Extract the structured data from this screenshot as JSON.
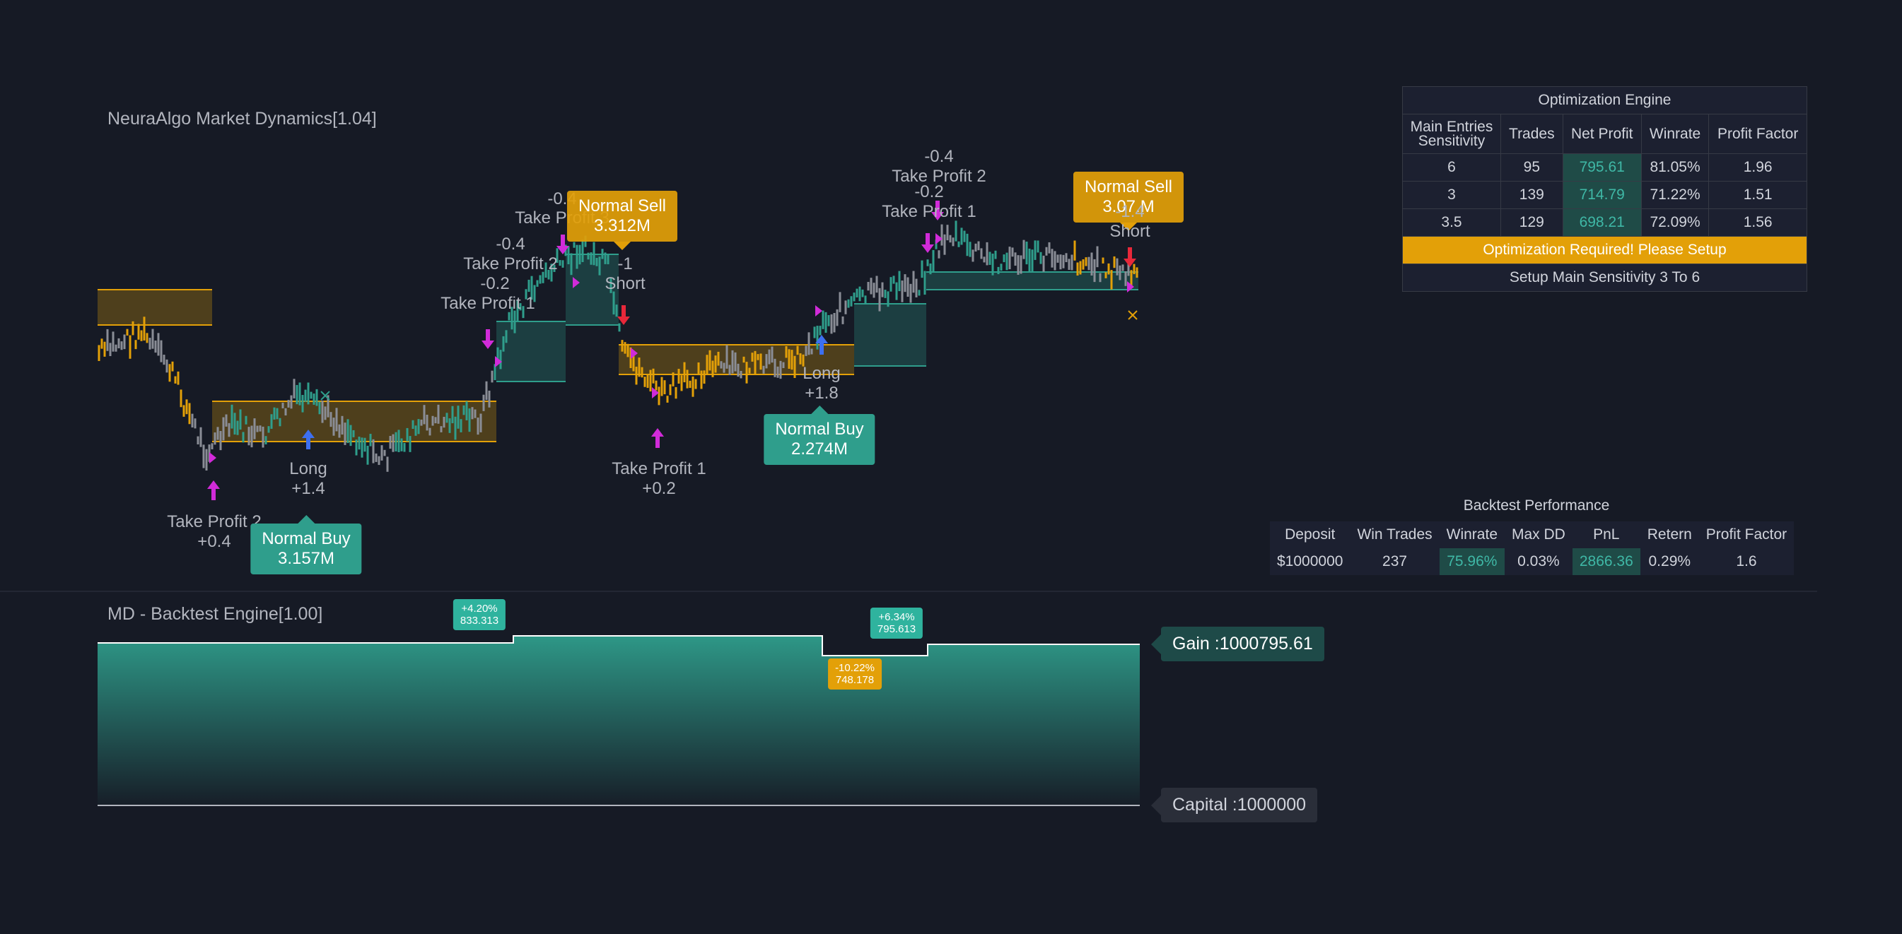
{
  "indicator_title": "NeuraAlgo Market Dynamics[1.04]",
  "backtest_title": "MD - Backtest Engine[1.00]",
  "colors": {
    "background": "#161a25",
    "teal": "#2f9e8c",
    "orange": "#e3a008",
    "gray_price": "#8a8d96",
    "magenta": "#d12bd9",
    "blue_arrow": "#3d6ff0",
    "red_arrow": "#e8283a"
  },
  "chart_labels": {
    "tp2_left": "Take Profit 2",
    "tp2_left_val": "+0.4",
    "long1": "Long",
    "long1_val": "+1.4",
    "buy1_line1": "Normal Buy",
    "buy1_line2": "3.157M",
    "tp1_a": "Take Profit 1",
    "tp1_a_val": "-0.2",
    "tp2_a": "Take Profit 2",
    "tp2_a_val": "-0.4",
    "tp3_a": "Take Profit 3",
    "tp3_a_val": "-0.4",
    "sell1_line1": "Normal Sell",
    "sell1_line2": "3.312M",
    "short1": "Short",
    "short1_val": "-1",
    "tp1_b": "Take Profit 1",
    "tp1_b_val": "+0.2",
    "long2": "Long",
    "long2_val": "+1.8",
    "buy2_line1": "Normal Buy",
    "buy2_line2": "2.274M",
    "tp2_b": "Take Profit 2",
    "tp2_b_val": "-0.4",
    "tp1_c": "Take Profit 1",
    "tp1_c_val": "-0.2",
    "sell2_line1": "Normal Sell",
    "sell2_line2": "3.07.M",
    "short2_val": "-1.4",
    "short2": "Short"
  },
  "optimization": {
    "title": "Optimization Engine",
    "headers": [
      "Main Entries Sensitivity",
      "Trades",
      "Net Profit",
      "Winrate",
      "Profit Factor"
    ],
    "rows": [
      [
        "6",
        "95",
        "795.61",
        "81.05%",
        "1.96"
      ],
      [
        "3",
        "139",
        "714.79",
        "71.22%",
        "1.51"
      ],
      [
        "3.5",
        "129",
        "698.21",
        "72.09%",
        "1.56"
      ]
    ],
    "warning": "Optimization Required! Please Setup",
    "setup": "Setup Main Sensitivity 3 To 6"
  },
  "backtest_performance": {
    "title": "Backtest Performance",
    "headers": [
      "Deposit",
      "Win Trades",
      "Winrate",
      "Max DD",
      "PnL",
      "Retern",
      "Profit Factor"
    ],
    "values": [
      "$1000000",
      "237",
      "75.96%",
      "0.03%",
      "2866.36",
      "0.29%",
      "1.6"
    ]
  },
  "equity_tags": {
    "t1_pct": "+4.20%",
    "t1_val": "833.313",
    "t2_pct": "-10.22%",
    "t2_val": "748.178",
    "t3_pct": "+6.34%",
    "t3_val": "795.613"
  },
  "gain_label": "Gain :1000795.61",
  "capital_label": "Capital :1000000",
  "chart_data": {
    "type": "line",
    "series": [
      {
        "name": "",
        "values": [
          833.313,
          748.178,
          795.613
        ]
      }
    ],
    "equity_steps": [
      {
        "value": 1000833.313,
        "change": "+4.20%"
      },
      {
        "value": 1000748.178,
        "change": "-10.22%"
      },
      {
        "value": 1000795.613,
        "change": "+6.34%"
      }
    ],
    "capital": 1000000,
    "gain": 1000795.61
  }
}
